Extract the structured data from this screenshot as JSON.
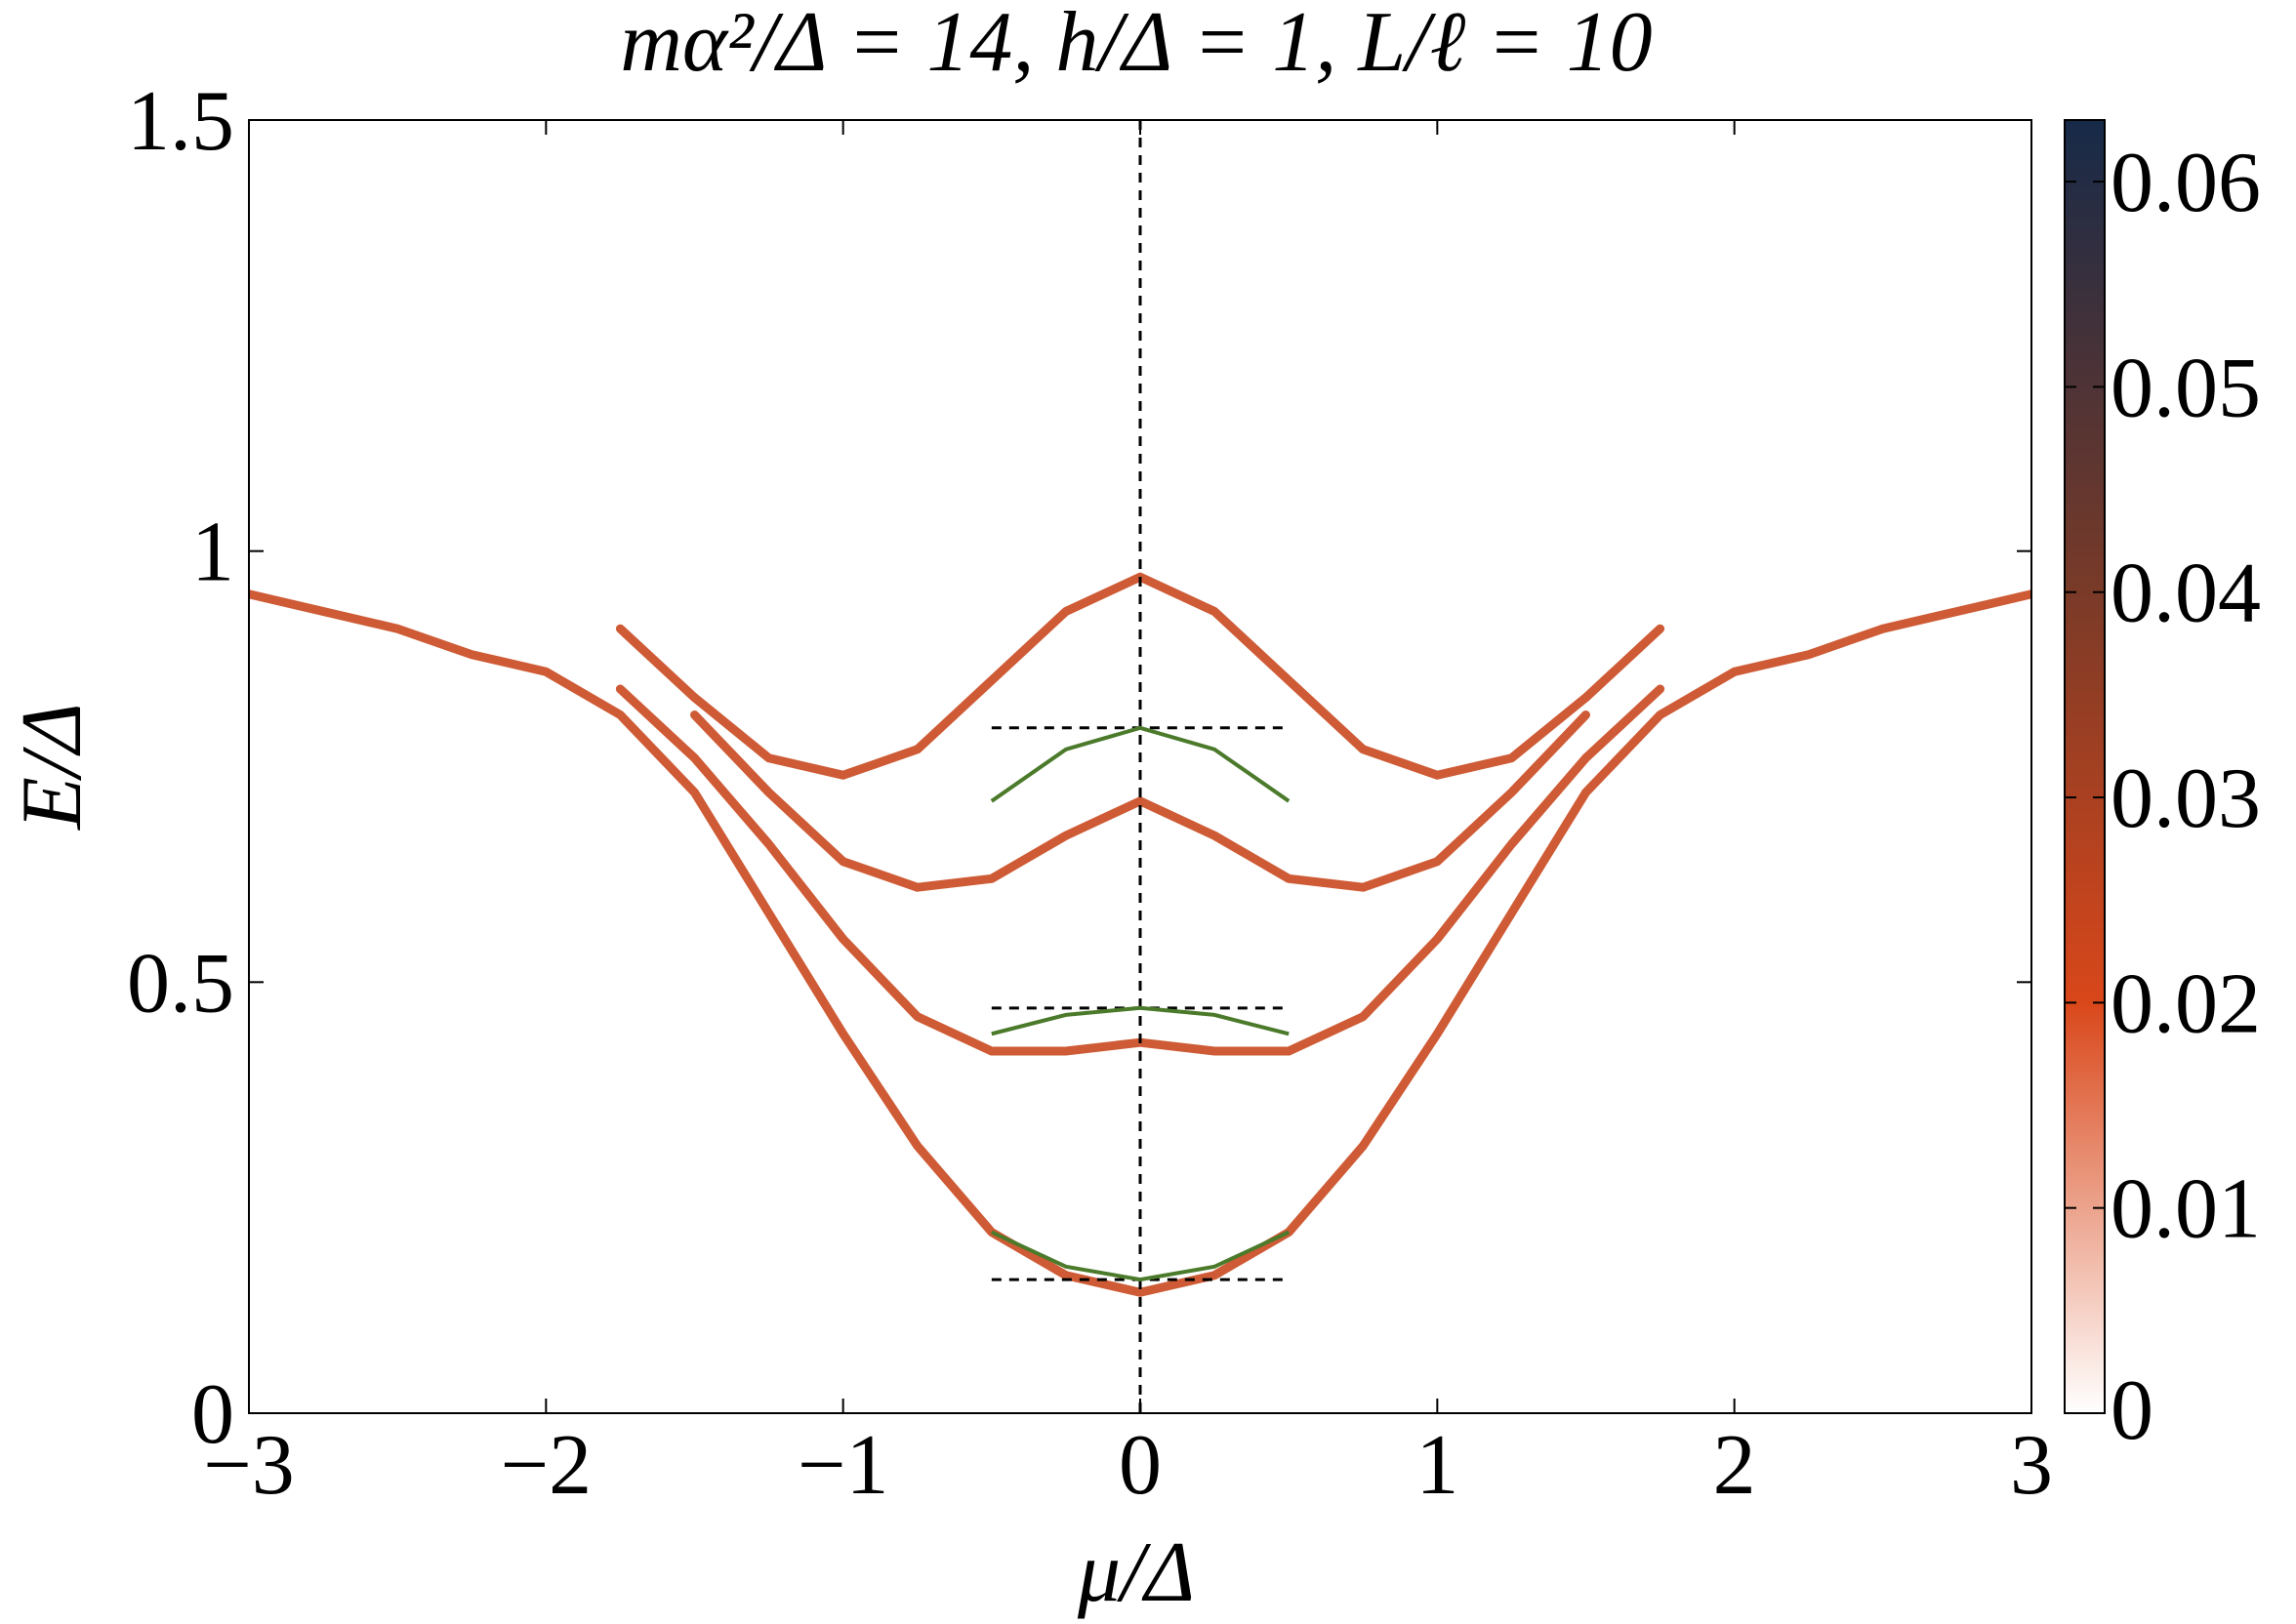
{
  "chart_data": {
    "type": "line",
    "title": "mα²/Δ = 14, h/Δ = 1, L/ℓ = 10",
    "x_label": "μ/Δ",
    "y_label": "E/Δ",
    "xlim": [
      -3,
      3
    ],
    "xticks": [
      {
        "value": -3,
        "label": "−3"
      },
      {
        "value": -2,
        "label": "−2"
      },
      {
        "value": -1,
        "label": "−1"
      },
      0,
      1,
      2,
      3
    ],
    "ylim": [
      0,
      1.5
    ],
    "yticks": [
      0,
      0.5,
      1,
      1.5
    ],
    "x": [
      -3,
      -2.75,
      -2.5,
      -2.25,
      -2,
      -1.75,
      -1.5,
      -1.25,
      -1,
      -0.75,
      -0.5,
      -0.25,
      0,
      0.25,
      0.5,
      0.75,
      1,
      1.25,
      1.5,
      1.75,
      2,
      2.25,
      2.5,
      2.75,
      3
    ],
    "series": [
      {
        "color": "#c9491f",
        "values": [
          0.95,
          0.93,
          0.91,
          0.88,
          0.86,
          0.81,
          0.72,
          0.58,
          0.44,
          0.31,
          0.21,
          0.16,
          0.14,
          0.16,
          0.21,
          0.31,
          0.44,
          0.58,
          0.72,
          0.81,
          0.86,
          0.88,
          0.91,
          0.93,
          0.95
        ]
      },
      {
        "color": "#c9491f",
        "values": [
          null,
          null,
          null,
          null,
          null,
          0.84,
          0.76,
          0.66,
          0.55,
          0.46,
          0.42,
          0.42,
          0.43,
          0.42,
          0.42,
          0.46,
          0.55,
          0.66,
          0.76,
          0.84,
          null,
          null,
          null,
          null,
          null
        ]
      },
      {
        "color": "#c9491f",
        "values": [
          null,
          null,
          null,
          null,
          null,
          null,
          0.81,
          0.72,
          0.64,
          0.61,
          0.62,
          0.67,
          0.71,
          0.67,
          0.62,
          0.61,
          0.64,
          0.72,
          0.81,
          null,
          null,
          null,
          null,
          null,
          null
        ]
      },
      {
        "color": "#c9491f",
        "values": [
          null,
          null,
          null,
          null,
          null,
          0.91,
          0.83,
          0.76,
          0.74,
          0.77,
          0.85,
          0.93,
          0.97,
          0.93,
          0.85,
          0.77,
          0.74,
          0.76,
          0.83,
          0.91,
          null,
          null,
          null,
          null,
          null
        ]
      }
    ],
    "approximations": {
      "color": "#4a7a2a",
      "x": [
        -0.5,
        -0.25,
        0,
        0.25,
        0.5
      ],
      "series": [
        {
          "values": [
            0.71,
            0.77,
            0.795,
            0.77,
            0.71
          ]
        },
        {
          "values": [
            0.44,
            0.462,
            0.47,
            0.462,
            0.44
          ]
        },
        {
          "values": [
            0.21,
            0.17,
            0.155,
            0.17,
            0.21
          ]
        }
      ]
    },
    "reference_lines": {
      "y": [
        0.795,
        0.47,
        0.155
      ],
      "xrange": [
        -0.5,
        0.5
      ]
    },
    "vline": 0,
    "colorbar": {
      "clim": [
        0,
        0.063
      ],
      "ticks": [
        0,
        0.01,
        0.02,
        0.03,
        0.04,
        0.05,
        0.06
      ],
      "colormap": [
        {
          "value": 0,
          "color": "#ffffff"
        },
        {
          "value": 0.02,
          "color": "#d9471a"
        },
        {
          "value": 0.04,
          "color": "#7a3a28"
        },
        {
          "value": 0.063,
          "color": "#162a48"
        }
      ]
    }
  }
}
